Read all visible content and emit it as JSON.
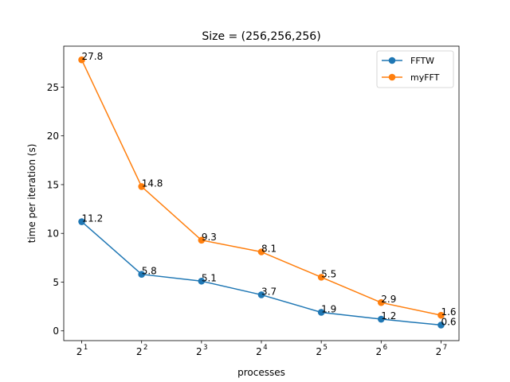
{
  "chart_data": {
    "type": "line",
    "title": "Size = (256,256,256)",
    "xlabel": "processes",
    "ylabel": "time per iteration (s)",
    "x": [
      1,
      2,
      3,
      4,
      5,
      6,
      7
    ],
    "x_tick_base": "2",
    "x_tick_exponents": [
      "1",
      "2",
      "3",
      "4",
      "5",
      "6",
      "7"
    ],
    "y_ticks": [
      0,
      5,
      10,
      15,
      20,
      25
    ],
    "ylim": [
      -1.0,
      29.2
    ],
    "xlim": [
      0.7,
      7.3
    ],
    "grid": false,
    "legend_position": "top-right",
    "series": [
      {
        "name": "FFTW",
        "color": "#1f77b4",
        "values": [
          11.2,
          5.8,
          5.1,
          3.7,
          1.9,
          1.2,
          0.6
        ],
        "labels": [
          "11.2",
          "5.8",
          "5.1",
          "3.7",
          "1.9",
          "1.2",
          "0.6"
        ]
      },
      {
        "name": "myFFT",
        "color": "#ff7f0e",
        "values": [
          27.8,
          14.8,
          9.3,
          8.1,
          5.5,
          2.9,
          1.6
        ],
        "labels": [
          "27.8",
          "14.8",
          "9.3",
          "8.1",
          "5.5",
          "2.9",
          "1.6"
        ]
      }
    ]
  }
}
